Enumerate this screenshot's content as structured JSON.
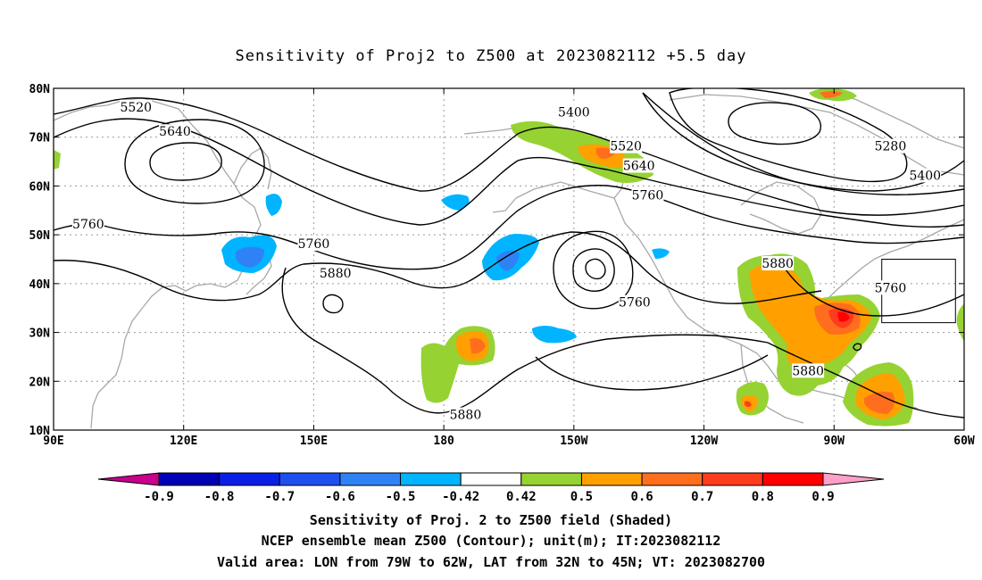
{
  "title": "Sensitivity of Proj2 to Z500 at 2023082112 +5.5 day",
  "map": {
    "lon_range": [
      90,
      300
    ],
    "lat_range": [
      10,
      80
    ],
    "lat_ticks": [
      "80N",
      "70N",
      "60N",
      "50N",
      "40N",
      "30N",
      "20N",
      "10N"
    ],
    "lon_ticks": [
      "90E",
      "120E",
      "150E",
      "180",
      "150W",
      "120W",
      "90W",
      "60W"
    ],
    "grid": "dotted",
    "valid_area": {
      "lon": [
        281,
        298
      ],
      "lat": [
        32,
        45
      ]
    },
    "contour_labels": [
      {
        "text": "5520",
        "lon": 109,
        "lat": 76
      },
      {
        "text": "5640",
        "lon": 118,
        "lat": 71
      },
      {
        "text": "5760",
        "lon": 98,
        "lat": 52
      },
      {
        "text": "5760",
        "lon": 150,
        "lat": 48
      },
      {
        "text": "5880",
        "lon": 155,
        "lat": 42
      },
      {
        "text": "5400",
        "lon": 210,
        "lat": 75
      },
      {
        "text": "5520",
        "lon": 222,
        "lat": 68
      },
      {
        "text": "5640",
        "lon": 225,
        "lat": 64
      },
      {
        "text": "5760",
        "lon": 227,
        "lat": 58
      },
      {
        "text": "5760",
        "lon": 224,
        "lat": 36
      },
      {
        "text": "5880",
        "lon": 257,
        "lat": 44
      },
      {
        "text": "5880",
        "lon": 264,
        "lat": 22
      },
      {
        "text": "5880",
        "lon": 185,
        "lat": 13
      },
      {
        "text": "5280",
        "lon": 283,
        "lat": 68
      },
      {
        "text": "5400",
        "lon": 291,
        "lat": 62
      },
      {
        "text": "5760",
        "lon": 283,
        "lat": 39
      }
    ]
  },
  "colorbar": {
    "labels": [
      "-0.9",
      "-0.8",
      "-0.7",
      "-0.6",
      "-0.5",
      "-0.42",
      "0.42",
      "0.5",
      "0.6",
      "0.7",
      "0.8",
      "0.9"
    ],
    "colors": [
      "#0000b4",
      "#0a1fe6",
      "#1e50f0",
      "#2f82f5",
      "#00b4ff",
      "#ffffff",
      "#96d232",
      "#ffa000",
      "#ff6e1e",
      "#ff3c1e",
      "#ff0000"
    ],
    "low_end_color": "#c8008c",
    "high_end_color": "#ffa0c8"
  },
  "footer": {
    "line1": "Sensitivity of Proj. 2 to Z500 field (Shaded)",
    "line2": "NCEP ensemble mean Z500 (Contour); unit(m); IT:2023082112",
    "line3": "Valid area: LON from 79W to 62W, LAT from 32N to 45N; VT: 2023082700"
  }
}
